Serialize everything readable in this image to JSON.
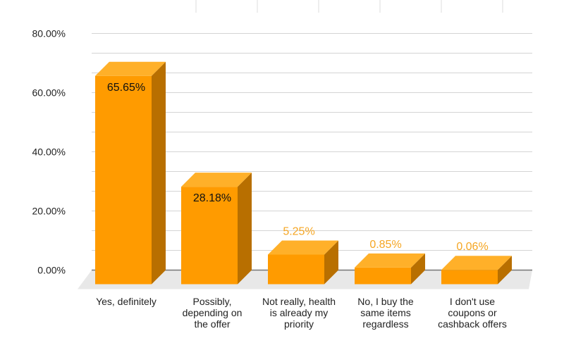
{
  "chart_data": {
    "type": "bar",
    "style": "3d-column",
    "title": "",
    "xlabel": "",
    "ylabel": "",
    "ylim": [
      0,
      80
    ],
    "y_ticks": [
      "0.00%",
      "20.00%",
      "40.00%",
      "60.00%",
      "80.00%"
    ],
    "grid": true,
    "categories": [
      [
        "Yes, definitely"
      ],
      [
        "Possibly,",
        "depending on",
        "the offer"
      ],
      [
        "Not really, health",
        "is already my",
        "priority"
      ],
      [
        "No, I buy the",
        "same items",
        "regardless"
      ],
      [
        "I don't use",
        "coupons or",
        "cashback offers"
      ]
    ],
    "values": [
      65.65,
      28.18,
      5.25,
      0.85,
      0.06
    ],
    "value_labels": [
      "65.65%",
      "28.18%",
      "5.25%",
      "0.85%",
      "0.06%"
    ],
    "colors": {
      "bar_front": "#ff9b00",
      "bar_top": "#ffb029",
      "bar_side": "#b86f00",
      "floor": "#e8e8e8",
      "grid": "#d4d4d4",
      "baseline": "#757575",
      "label_inside": "#111111",
      "label_above": "#f5a623"
    }
  }
}
